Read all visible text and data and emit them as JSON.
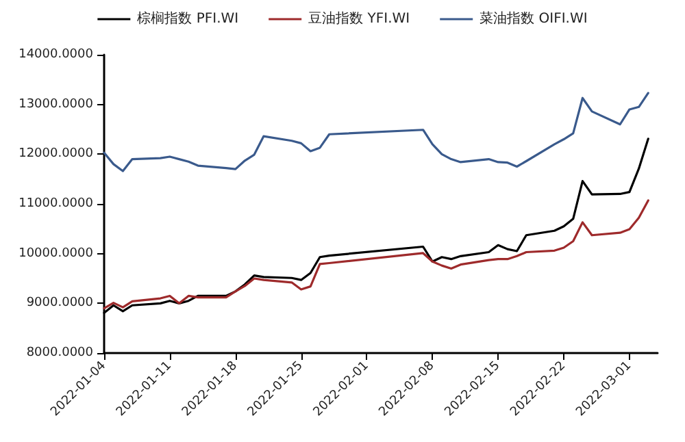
{
  "chart_data": {
    "type": "line",
    "legend": "top",
    "grid": false,
    "marker": "none",
    "line_style": "solid",
    "x": [
      "2022-01-04",
      "2022-01-05",
      "2022-01-06",
      "2022-01-07",
      "2022-01-10",
      "2022-01-11",
      "2022-01-12",
      "2022-01-13",
      "2022-01-14",
      "2022-01-17",
      "2022-01-18",
      "2022-01-19",
      "2022-01-20",
      "2022-01-21",
      "2022-01-24",
      "2022-01-25",
      "2022-01-26",
      "2022-01-27",
      "2022-01-28",
      "2022-02-07",
      "2022-02-08",
      "2022-02-09",
      "2022-02-10",
      "2022-02-11",
      "2022-02-14",
      "2022-02-15",
      "2022-02-16",
      "2022-02-17",
      "2022-02-18",
      "2022-02-21",
      "2022-02-22",
      "2022-02-23",
      "2022-02-24",
      "2022-02-25",
      "2022-02-28",
      "2022-03-01",
      "2022-03-02",
      "2022-03-03"
    ],
    "series": [
      {
        "name": "棕榈指数 PFI.WI",
        "color": "#000000",
        "values": [
          8810,
          8960,
          8840,
          8960,
          9000,
          9050,
          9000,
          9050,
          9150,
          9150,
          9240,
          9380,
          9560,
          9530,
          9510,
          9470,
          9610,
          9930,
          9960,
          10140,
          9840,
          9930,
          9890,
          9950,
          10030,
          10170,
          10090,
          10050,
          10370,
          10460,
          10550,
          10700,
          11460,
          11190,
          11200,
          11240,
          11710,
          12310
        ]
      },
      {
        "name": "豆油指数 YFI.WI",
        "color": "#9e2a2b",
        "values": [
          8900,
          9010,
          8920,
          9040,
          9100,
          9150,
          9000,
          9150,
          9120,
          9120,
          9240,
          9350,
          9500,
          9470,
          9420,
          9280,
          9340,
          9790,
          9810,
          10010,
          9840,
          9760,
          9700,
          9780,
          9870,
          9890,
          9890,
          9950,
          10030,
          10060,
          10120,
          10250,
          10630,
          10370,
          10420,
          10490,
          10720,
          11070
        ]
      },
      {
        "name": "菜油指数 OIFI.WI",
        "color": "#3a5a8c",
        "values": [
          12030,
          11800,
          11660,
          11900,
          11920,
          11950,
          11900,
          11850,
          11770,
          11720,
          11700,
          11870,
          11990,
          12360,
          12270,
          12220,
          12060,
          12130,
          12400,
          12490,
          12200,
          12000,
          11900,
          11840,
          11900,
          11840,
          11830,
          11750,
          11860,
          12200,
          12300,
          12420,
          13130,
          12860,
          12600,
          12900,
          12950,
          13230
        ]
      }
    ],
    "xlim": [
      "2022-01-04",
      "2022-03-04"
    ],
    "xticks": [
      "2022-01-04",
      "2022-01-11",
      "2022-01-18",
      "2022-01-25",
      "2022-02-01",
      "2022-02-08",
      "2022-02-15",
      "2022-02-22",
      "2022-03-01"
    ],
    "ylim": [
      8000,
      14000
    ],
    "yticks": [
      {
        "value": 8000,
        "label": "8000.0000"
      },
      {
        "value": 9000,
        "label": "9000.0000"
      },
      {
        "value": 10000,
        "label": "10000.0000"
      },
      {
        "value": 11000,
        "label": "11000.0000"
      },
      {
        "value": 12000,
        "label": "12000.0000"
      },
      {
        "value": 13000,
        "label": "13000.0000"
      },
      {
        "value": 14000,
        "label": "14000.0000"
      }
    ]
  }
}
